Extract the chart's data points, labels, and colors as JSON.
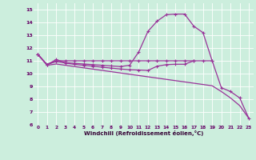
{
  "xlabel": "Windchill (Refroidissement éolien,°C)",
  "bg_color": "#cceedd",
  "grid_color": "#aaddcc",
  "line_color": "#993399",
  "x": [
    0,
    1,
    2,
    3,
    4,
    5,
    6,
    7,
    8,
    9,
    10,
    11,
    12,
    13,
    14,
    15,
    16,
    17,
    18,
    19,
    20,
    21,
    22,
    23
  ],
  "curve1": [
    11.5,
    10.7,
    11.1,
    10.85,
    10.8,
    10.75,
    10.7,
    10.65,
    10.6,
    10.55,
    10.65,
    11.7,
    13.3,
    14.1,
    14.6,
    14.65,
    14.65,
    13.7,
    13.2,
    11.0,
    8.9,
    8.6,
    8.1,
    6.5
  ],
  "curve2": [
    11.5,
    10.7,
    11.0,
    11.0,
    11.0,
    11.0,
    11.0,
    11.0,
    11.0,
    11.0,
    11.0,
    11.0,
    11.0,
    11.0,
    11.0,
    11.0,
    11.0,
    11.0,
    11.0,
    11.0,
    null,
    null,
    null,
    null
  ],
  "curve3": [
    11.5,
    10.65,
    10.75,
    10.65,
    10.55,
    10.45,
    10.35,
    10.25,
    10.15,
    10.05,
    9.95,
    9.85,
    9.75,
    9.65,
    9.55,
    9.45,
    9.35,
    9.25,
    9.15,
    9.05,
    8.6,
    8.1,
    7.5,
    6.5
  ],
  "curve4": [
    11.5,
    10.7,
    10.95,
    10.83,
    10.72,
    10.65,
    10.58,
    10.5,
    10.43,
    10.36,
    10.3,
    10.28,
    10.25,
    10.58,
    10.7,
    10.73,
    10.73,
    11.0,
    null,
    null,
    null,
    null,
    null,
    null
  ],
  "ylim": [
    6,
    15.5
  ],
  "xlim": [
    -0.5,
    23.5
  ],
  "yticks": [
    6,
    7,
    8,
    9,
    10,
    11,
    12,
    13,
    14,
    15
  ],
  "xticks": [
    0,
    1,
    2,
    3,
    4,
    5,
    6,
    7,
    8,
    9,
    10,
    11,
    12,
    13,
    14,
    15,
    16,
    17,
    18,
    19,
    20,
    21,
    22,
    23
  ]
}
